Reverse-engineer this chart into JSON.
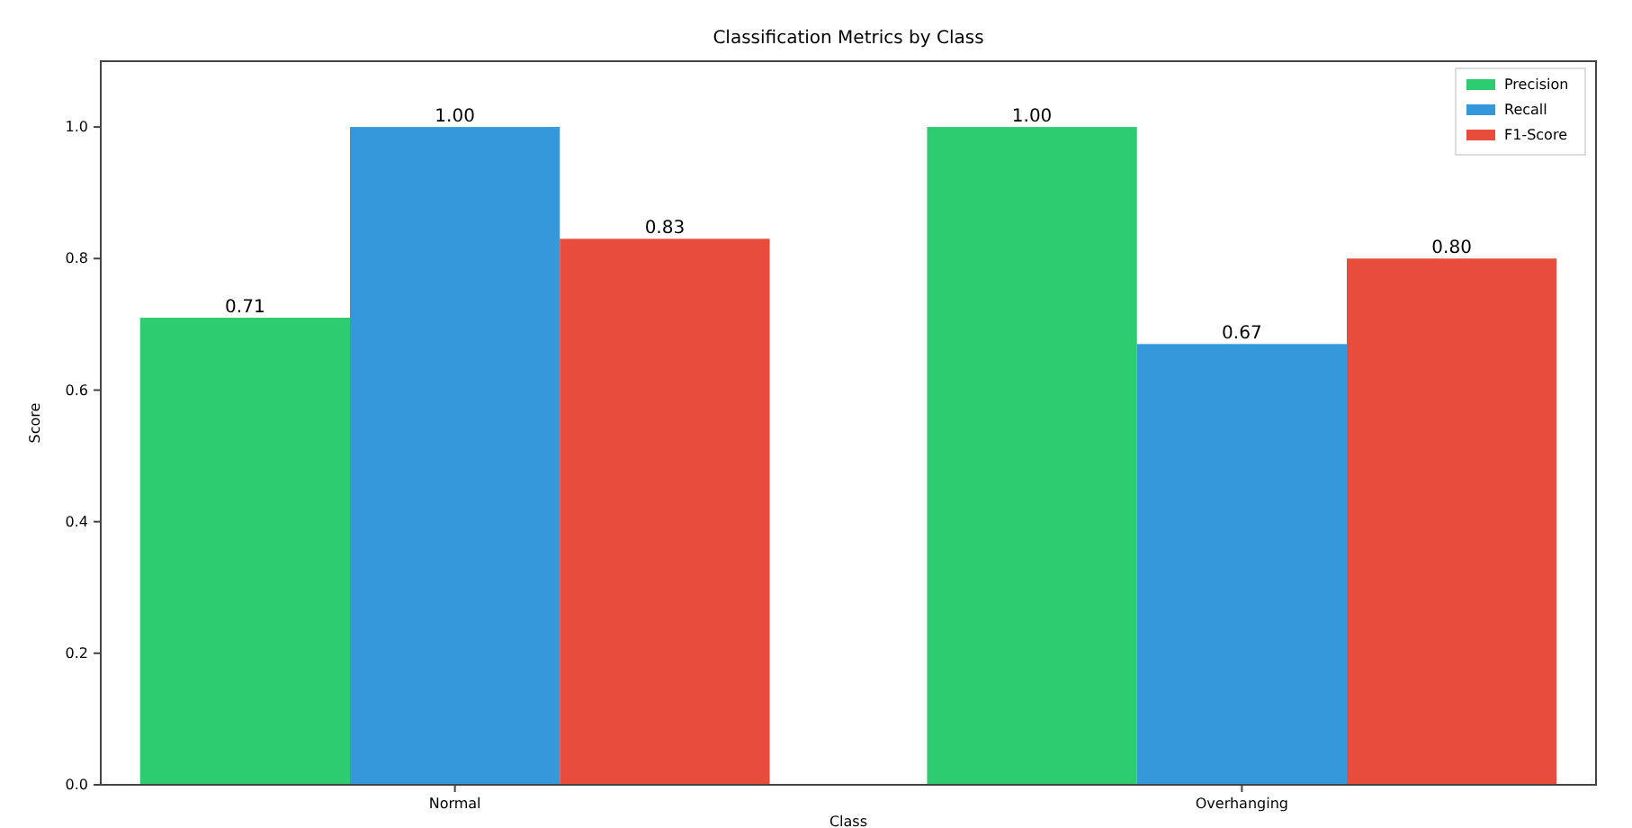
{
  "chart_data": {
    "type": "bar",
    "title": "Classification Metrics by Class",
    "xlabel": "Class",
    "ylabel": "Score",
    "categories": [
      "Normal",
      "Overhanging"
    ],
    "series": [
      {
        "name": "Precision",
        "color": "#2ecc71",
        "values": [
          0.71,
          1.0
        ],
        "value_labels": [
          "0.71",
          "1.00"
        ]
      },
      {
        "name": "Recall",
        "color": "#3498db",
        "values": [
          1.0,
          0.67
        ],
        "value_labels": [
          "1.00",
          "0.67"
        ]
      },
      {
        "name": "F1-Score",
        "color": "#e74c3c",
        "values": [
          0.83,
          0.8
        ],
        "value_labels": [
          "0.83",
          "0.80"
        ]
      }
    ],
    "ylim": [
      0,
      1.1
    ],
    "yticks": [
      {
        "value": 0,
        "label": "0.0"
      },
      0.2,
      0.4,
      0.6,
      0.8,
      {
        "value": 1,
        "label": "1.0"
      }
    ],
    "grid": false,
    "legend": "top right"
  }
}
